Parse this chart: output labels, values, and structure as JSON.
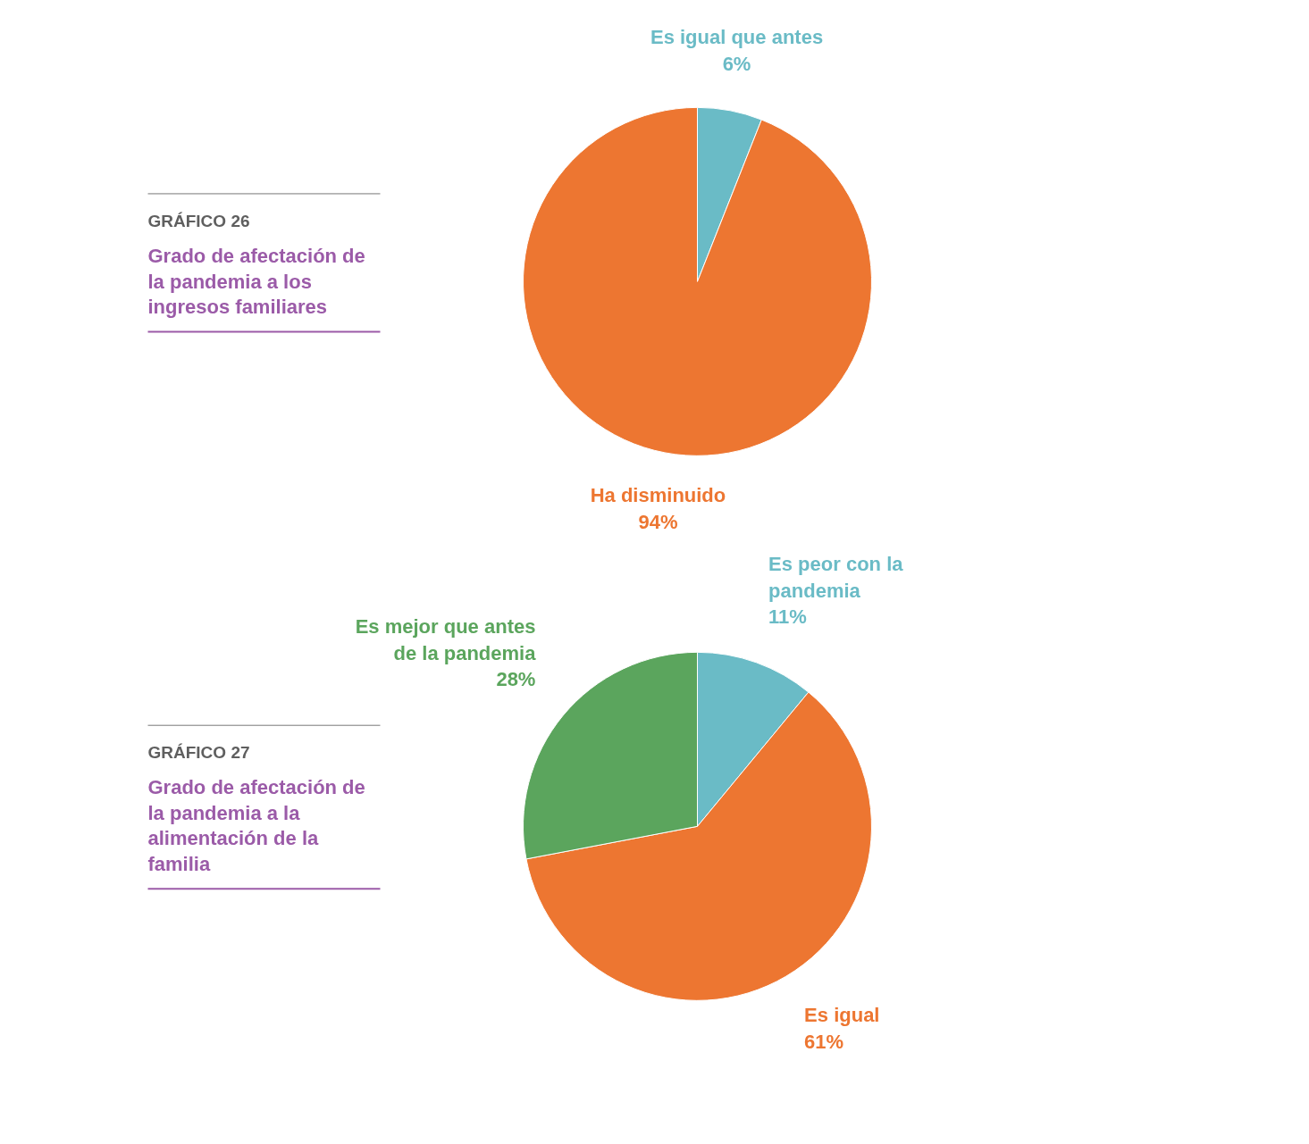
{
  "chart_data": [
    {
      "type": "pie",
      "title": "Grado de afectación de la pandemia a los ingresos familiares",
      "annotations": [
        "GRÁFICO 26"
      ],
      "categories": [
        "Es igual que antes",
        "Ha disminuido"
      ],
      "values": [
        6,
        94
      ],
      "colors": [
        "#6abbc6",
        "#ed7631"
      ],
      "value_labels": [
        "6%",
        "94%"
      ],
      "legend": false
    },
    {
      "type": "pie",
      "title": "Grado de afectación de la pandemia a la alimentación de la familia",
      "annotations": [
        "GRÁFICO 27"
      ],
      "categories": [
        "Es peor con la pandemia",
        "Es igual",
        "Es mejor que antes de la pandemia"
      ],
      "values": [
        11,
        61,
        28
      ],
      "colors": [
        "#6abbc6",
        "#ed7631",
        "#5ba55d"
      ],
      "value_labels": [
        "11%",
        "61%",
        "28%"
      ],
      "legend": false
    }
  ]
}
